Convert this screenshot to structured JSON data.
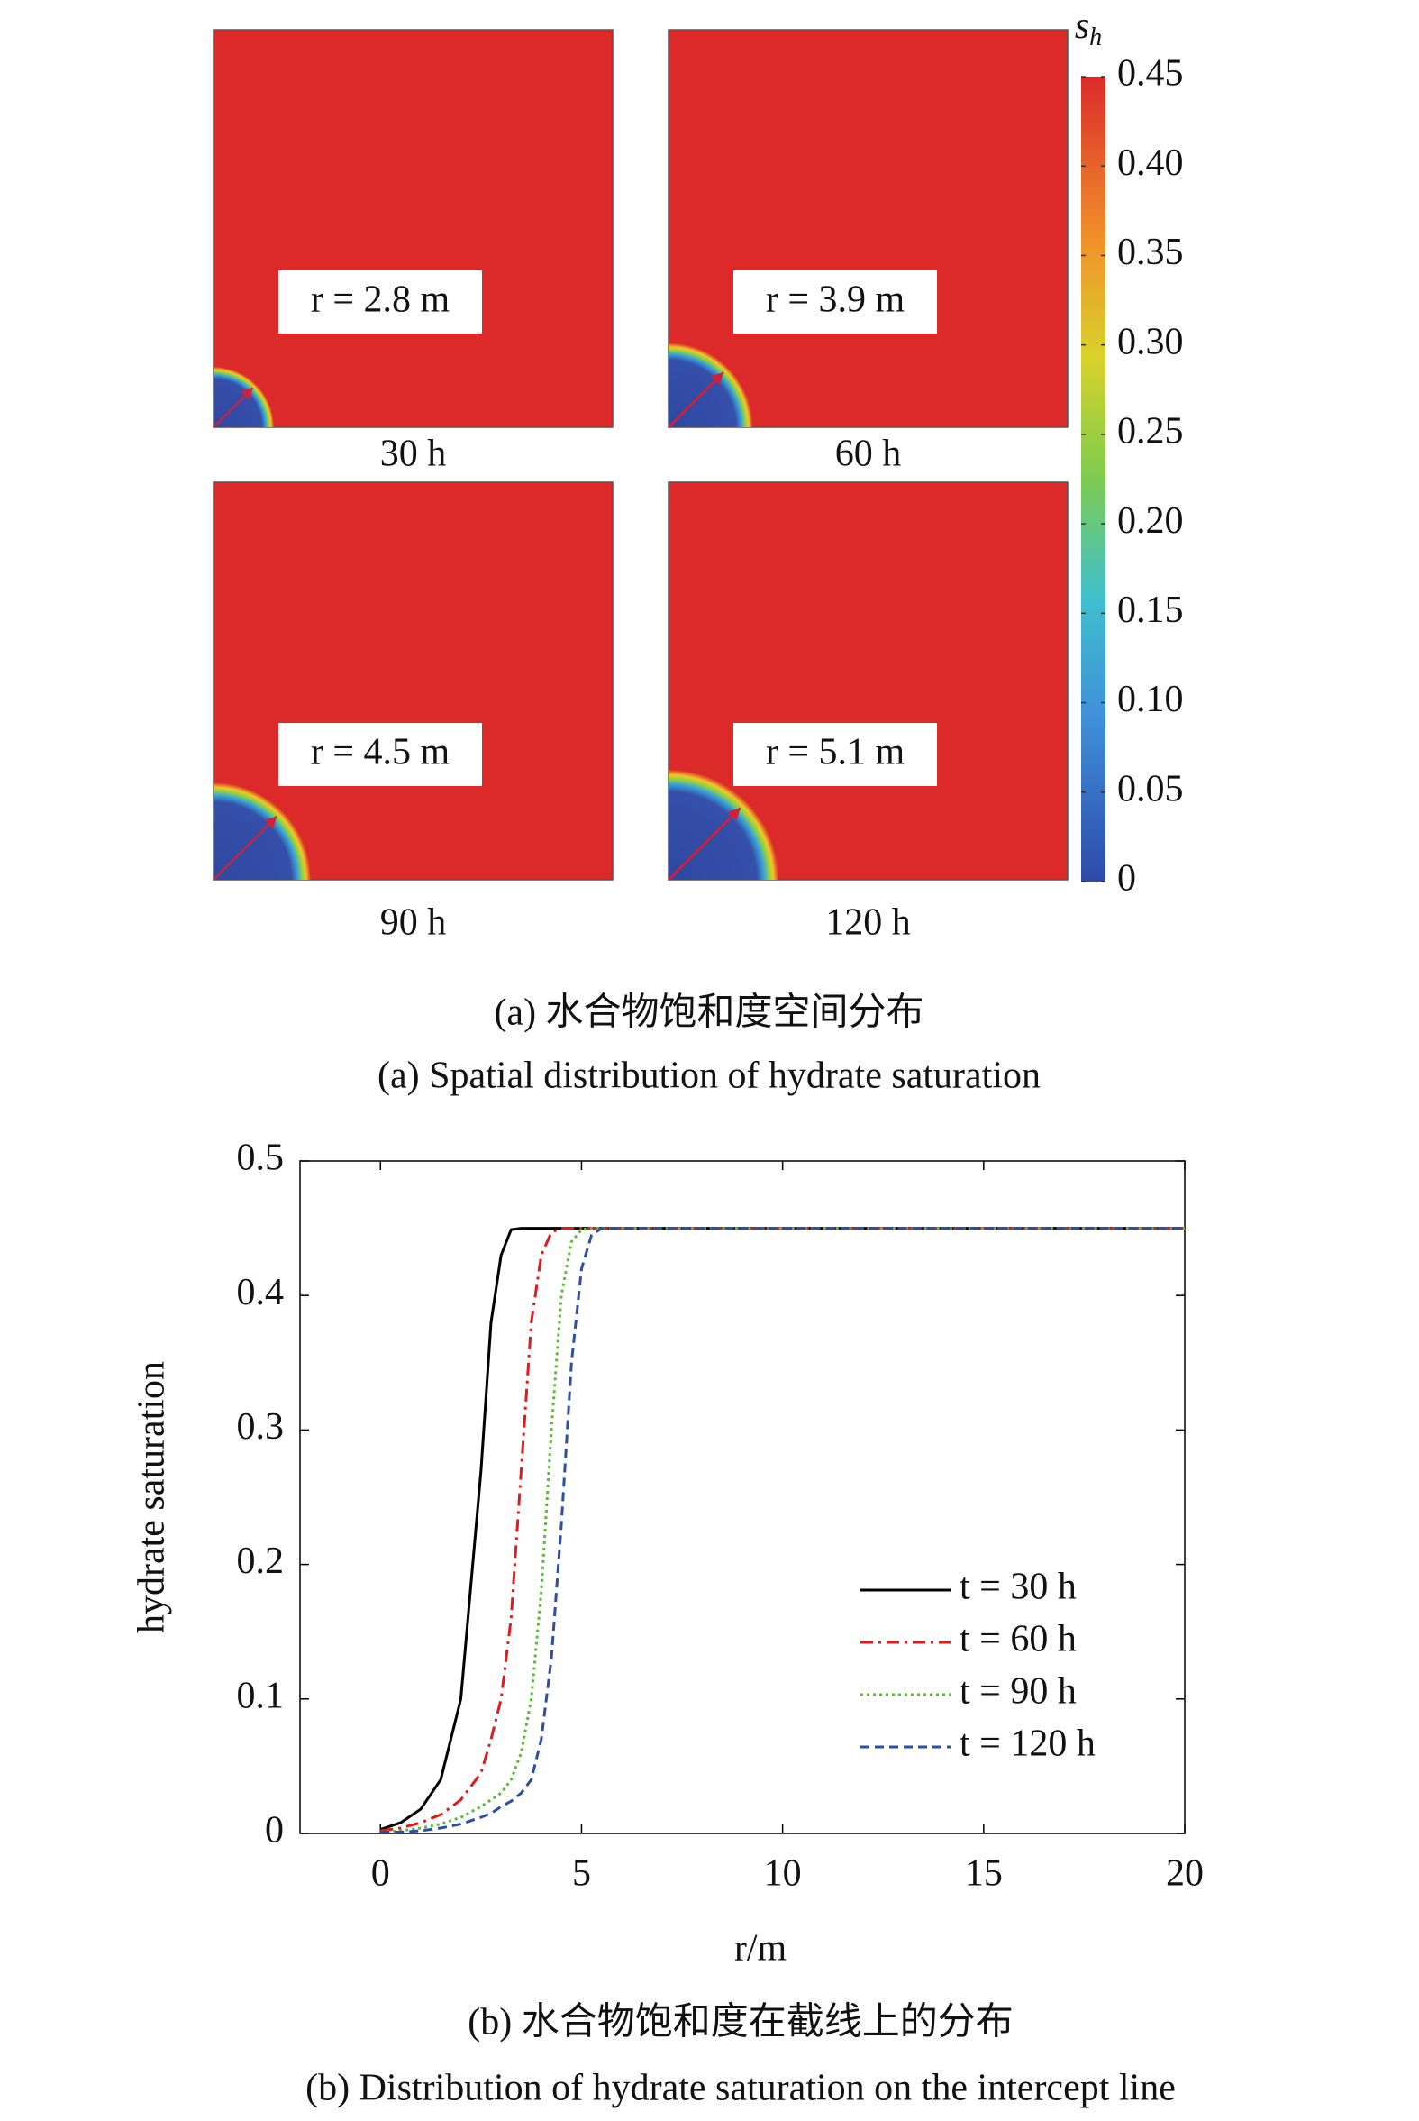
{
  "chart_data": [
    {
      "type": "heatmap-panels",
      "panels": [
        {
          "label": "30 h",
          "annotation": {
            "value": 2.8,
            "label": "r = 2.8 m"
          }
        },
        {
          "label": "60 h",
          "annotation": {
            "value": 3.9,
            "label": "r = 3.9 m"
          }
        },
        {
          "label": "90 h",
          "annotation": {
            "value": 4.5,
            "label": "r = 4.5 m"
          }
        },
        {
          "label": "120 h",
          "annotation": {
            "value": 5.1,
            "label": "r = 5.1 m"
          }
        }
      ],
      "colorbar_title": "s",
      "colorbar_subscript": "h",
      "ylim": [
        0,
        0.45
      ],
      "yticks": [
        0,
        0.05,
        {
          "value": 0.1,
          "label": "0.10"
        },
        0.15,
        {
          "value": 0.2,
          "label": "0.20"
        },
        0.25,
        {
          "value": 0.3,
          "label": "0.30"
        },
        0.35,
        {
          "value": 0.4,
          "label": "0.40"
        },
        0.45
      ],
      "caption": "(a) 水合物饱和度空间分布",
      "subcaption": "(a) Spatial distribution of hydrate saturation"
    },
    {
      "type": "line",
      "xlabel": "r/m",
      "ylabel": "hydrate saturation",
      "x": [
        0,
        0.5,
        1,
        1.5,
        2,
        2.5,
        2.75,
        3,
        3.25,
        3.5,
        3.75,
        4,
        4.25,
        4.5,
        4.75,
        5,
        5.25,
        5.5,
        6,
        8,
        10,
        12,
        14,
        16,
        18,
        20
      ],
      "series": [
        {
          "name": "t = 30 h",
          "color": "#000000",
          "dash": "solid",
          "values": [
            0.003,
            0.008,
            0.018,
            0.04,
            0.1,
            0.27,
            0.38,
            0.43,
            0.449,
            0.45,
            0.45,
            0.45,
            0.45,
            0.45,
            0.45,
            0.45,
            0.45,
            0.45,
            0.45,
            0.45,
            0.45,
            0.45,
            0.45,
            0.45,
            0.45,
            0.45
          ]
        },
        {
          "name": "t = 60 h",
          "color": "#e3191c",
          "dash": "dashdot",
          "values": [
            0.002,
            0.004,
            0.008,
            0.014,
            0.025,
            0.045,
            0.07,
            0.1,
            0.16,
            0.27,
            0.38,
            0.43,
            0.447,
            0.45,
            0.45,
            0.45,
            0.45,
            0.45,
            0.45,
            0.45,
            0.45,
            0.45,
            0.45,
            0.45,
            0.45,
            0.45
          ]
        },
        {
          "name": "t = 90 h",
          "color": "#5cbb35",
          "dash": "dotted",
          "values": [
            0.001,
            0.002,
            0.004,
            0.007,
            0.012,
            0.02,
            0.025,
            0.03,
            0.04,
            0.06,
            0.1,
            0.18,
            0.3,
            0.4,
            0.44,
            0.449,
            0.45,
            0.45,
            0.45,
            0.45,
            0.45,
            0.45,
            0.45,
            0.45,
            0.45,
            0.45
          ]
        },
        {
          "name": "t = 120 h",
          "color": "#2b4ea6",
          "dash": "dashed",
          "values": [
            0.001,
            0.001,
            0.002,
            0.004,
            0.007,
            0.012,
            0.015,
            0.02,
            0.024,
            0.03,
            0.04,
            0.07,
            0.13,
            0.23,
            0.35,
            0.42,
            0.445,
            0.45,
            0.45,
            0.45,
            0.45,
            0.45,
            0.45,
            0.45,
            0.45,
            0.45
          ]
        }
      ],
      "xlim": [
        -2,
        20
      ],
      "ylim": [
        0,
        0.5
      ],
      "xticks": [
        0,
        5,
        10,
        15,
        20
      ],
      "yticks": [
        0,
        0.1,
        0.2,
        0.3,
        0.4,
        0.5
      ],
      "caption": "(b) 水合物饱和度在截线上的分布",
      "subcaption": "(b) Distribution of hydrate saturation on the intercept line"
    }
  ]
}
